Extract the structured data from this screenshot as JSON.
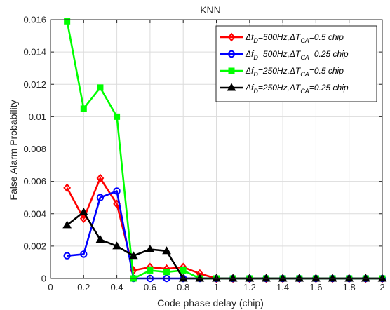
{
  "chart_data": {
    "type": "line",
    "title": "KNN",
    "xlabel": "Code phase delay (chip)",
    "ylabel": "False Alarm Probability",
    "xlim": [
      0,
      2
    ],
    "ylim": [
      0,
      0.016
    ],
    "grid": true,
    "legend_position": "top-right",
    "x_ticks": [
      0,
      0.2,
      0.4,
      0.6,
      0.8,
      1,
      1.2,
      1.4,
      1.6,
      1.8,
      2
    ],
    "x_tick_labels": [
      "0",
      "0.2",
      "0.4",
      "0.6",
      "0.8",
      "1",
      "1.2",
      "1.4",
      "1.6",
      "1.8",
      "2"
    ],
    "y_ticks": [
      0,
      0.002,
      0.004,
      0.006,
      0.008,
      0.01,
      0.012,
      0.014,
      0.016
    ],
    "y_tick_labels": [
      "0",
      "0.002",
      "0.004",
      "0.006",
      "0.008",
      "0.01",
      "0.012",
      "0.014",
      "0.016"
    ],
    "x": [
      0.1,
      0.2,
      0.3,
      0.4,
      0.5,
      0.6,
      0.7,
      0.8,
      0.9,
      1.0,
      1.1,
      1.2,
      1.3,
      1.4,
      1.5,
      1.6,
      1.7,
      1.8,
      1.9,
      2.0
    ],
    "series": [
      {
        "legend_parts": {
          "df": "500Hz",
          "dt": "0.5 chip"
        },
        "color": "#ff0000",
        "marker": "diamond",
        "values": [
          0.0056,
          0.0037,
          0.0062,
          0.0046,
          0.0005,
          0.0007,
          0.0006,
          0.0007,
          0.0003,
          0,
          0,
          0,
          0,
          0,
          0,
          0,
          0,
          0,
          0,
          0
        ]
      },
      {
        "legend_parts": {
          "df": "500Hz",
          "dt": "0.25 chip"
        },
        "color": "#0000ff",
        "marker": "circle",
        "values": [
          0.0014,
          0.0015,
          0.005,
          0.0054,
          0,
          0,
          0,
          0,
          0,
          0,
          0,
          0,
          0,
          0,
          0,
          0,
          0,
          0,
          0,
          0
        ]
      },
      {
        "legend_parts": {
          "df": "250Hz",
          "dt": "0.5 chip"
        },
        "color": "#00ff00",
        "marker": "square",
        "values": [
          0.0159,
          0.0105,
          0.0118,
          0.01,
          0,
          0.0005,
          0.0004,
          0.0005,
          0,
          0,
          0,
          0,
          0,
          0,
          0,
          0,
          0,
          0,
          0,
          0
        ]
      },
      {
        "legend_parts": {
          "df": "250Hz",
          "dt": "0.25 chip"
        },
        "color": "#000000",
        "marker": "triangle",
        "values": [
          0.0033,
          0.0041,
          0.0024,
          0.002,
          0.0014,
          0.0018,
          0.0017,
          0,
          0,
          0,
          0,
          0,
          0,
          0,
          0,
          0,
          0,
          0,
          0,
          0
        ]
      }
    ]
  }
}
